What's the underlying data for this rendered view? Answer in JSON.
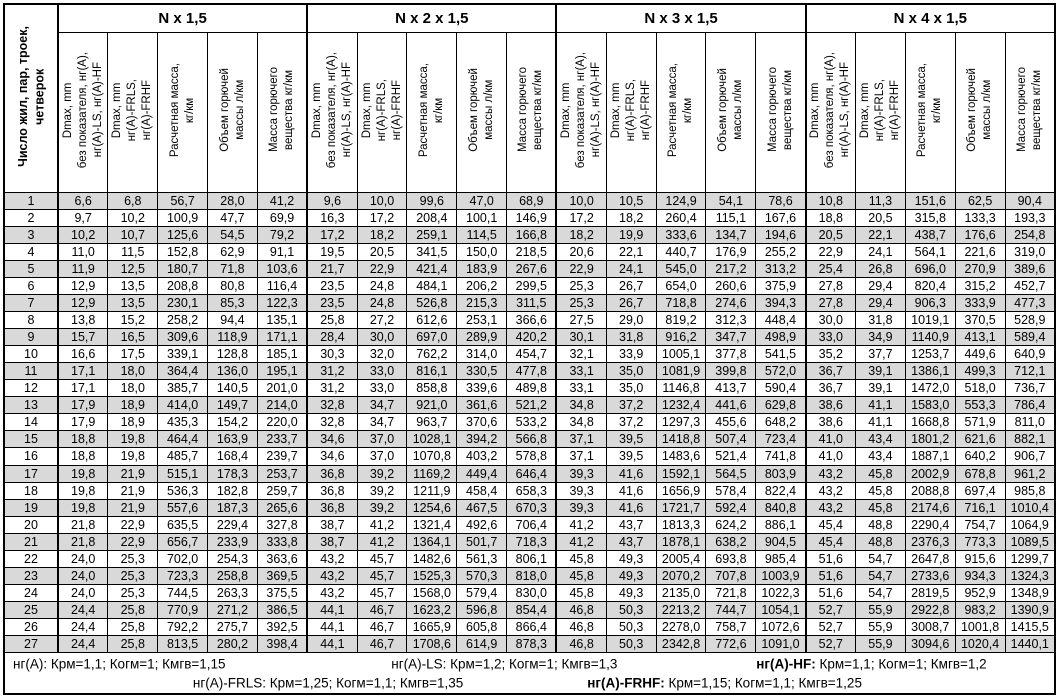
{
  "corner_header": "Число жил, пар, троек,\nчетверок",
  "groups": [
    "N x 1,5",
    "N x 2 x 1,5",
    "N x 3 x 1,5",
    "N x 4 x 1,5"
  ],
  "sub_headers": [
    "Dmax, mm\nбез показателя, нг(А),\nнг(А)-LS, нг(А)-HF",
    "Dmax, mm\nнг(А)-FRLS,\nнг(А)-FRHF",
    "Расчетная масса,\nкг/км",
    "Объем горючей\nмассы л/км",
    "Масса горючего\nвещества кг/км"
  ],
  "rows": [
    [
      "1",
      "6,6",
      "6,8",
      "56,7",
      "28,0",
      "41,2",
      "9,6",
      "10,0",
      "99,6",
      "47,0",
      "68,9",
      "10,0",
      "10,5",
      "124,9",
      "54,1",
      "78,6",
      "10,8",
      "11,3",
      "151,6",
      "62,5",
      "90,4"
    ],
    [
      "2",
      "9,7",
      "10,2",
      "100,9",
      "47,7",
      "69,9",
      "16,3",
      "17,2",
      "208,4",
      "100,1",
      "146,9",
      "17,2",
      "18,2",
      "260,4",
      "115,1",
      "167,6",
      "18,8",
      "20,5",
      "315,8",
      "133,3",
      "193,3"
    ],
    [
      "3",
      "10,2",
      "10,7",
      "125,6",
      "54,5",
      "79,2",
      "17,2",
      "18,2",
      "259,1",
      "114,5",
      "166,8",
      "18,2",
      "19,9",
      "333,6",
      "134,7",
      "194,6",
      "20,5",
      "22,1",
      "438,7",
      "176,6",
      "254,8"
    ],
    [
      "4",
      "11,0",
      "11,5",
      "152,8",
      "62,9",
      "91,1",
      "19,5",
      "20,5",
      "341,5",
      "150,0",
      "218,5",
      "20,6",
      "22,1",
      "440,7",
      "176,9",
      "255,2",
      "22,9",
      "24,1",
      "564,1",
      "221,6",
      "319,0"
    ],
    [
      "5",
      "11,9",
      "12,5",
      "180,7",
      "71,8",
      "103,6",
      "21,7",
      "22,9",
      "421,4",
      "183,9",
      "267,6",
      "22,9",
      "24,1",
      "545,0",
      "217,2",
      "313,2",
      "25,4",
      "26,8",
      "696,0",
      "270,9",
      "389,6"
    ],
    [
      "6",
      "12,9",
      "13,5",
      "208,8",
      "80,8",
      "116,4",
      "23,5",
      "24,8",
      "484,1",
      "206,2",
      "299,5",
      "25,3",
      "26,7",
      "654,0",
      "260,6",
      "375,9",
      "27,8",
      "29,4",
      "820,4",
      "315,2",
      "452,7"
    ],
    [
      "7",
      "12,9",
      "13,5",
      "230,1",
      "85,3",
      "122,3",
      "23,5",
      "24,8",
      "526,8",
      "215,3",
      "311,5",
      "25,3",
      "26,7",
      "718,8",
      "274,6",
      "394,3",
      "27,8",
      "29,4",
      "906,3",
      "333,9",
      "477,3"
    ],
    [
      "8",
      "13,8",
      "15,2",
      "258,2",
      "94,4",
      "135,1",
      "25,8",
      "27,2",
      "612,6",
      "253,1",
      "366,6",
      "27,5",
      "29,0",
      "819,2",
      "312,3",
      "448,4",
      "30,0",
      "31,8",
      "1019,1",
      "370,5",
      "528,9"
    ],
    [
      "9",
      "15,7",
      "16,5",
      "309,6",
      "118,9",
      "171,1",
      "28,4",
      "30,0",
      "697,0",
      "289,9",
      "420,2",
      "30,1",
      "31,8",
      "916,2",
      "347,7",
      "498,9",
      "33,0",
      "34,9",
      "1140,9",
      "413,1",
      "589,4"
    ],
    [
      "10",
      "16,6",
      "17,5",
      "339,1",
      "128,8",
      "185,1",
      "30,3",
      "32,0",
      "762,2",
      "314,0",
      "454,7",
      "32,1",
      "33,9",
      "1005,1",
      "377,8",
      "541,5",
      "35,2",
      "37,7",
      "1253,7",
      "449,6",
      "640,9"
    ],
    [
      "11",
      "17,1",
      "18,0",
      "364,4",
      "136,0",
      "195,1",
      "31,2",
      "33,0",
      "816,1",
      "330,5",
      "477,8",
      "33,1",
      "35,0",
      "1081,9",
      "399,8",
      "572,0",
      "36,7",
      "39,1",
      "1386,1",
      "499,3",
      "712,1"
    ],
    [
      "12",
      "17,1",
      "18,0",
      "385,7",
      "140,5",
      "201,0",
      "31,2",
      "33,0",
      "858,8",
      "339,6",
      "489,8",
      "33,1",
      "35,0",
      "1146,8",
      "413,7",
      "590,4",
      "36,7",
      "39,1",
      "1472,0",
      "518,0",
      "736,7"
    ],
    [
      "13",
      "17,9",
      "18,9",
      "414,0",
      "149,7",
      "214,0",
      "32,8",
      "34,7",
      "921,0",
      "361,6",
      "521,2",
      "34,8",
      "37,2",
      "1232,4",
      "441,6",
      "629,8",
      "38,6",
      "41,1",
      "1583,0",
      "553,3",
      "786,4"
    ],
    [
      "14",
      "17,9",
      "18,9",
      "435,3",
      "154,2",
      "220,0",
      "32,8",
      "34,7",
      "963,7",
      "370,6",
      "533,2",
      "34,8",
      "37,2",
      "1297,3",
      "455,6",
      "648,2",
      "38,6",
      "41,1",
      "1668,8",
      "571,9",
      "811,0"
    ],
    [
      "15",
      "18,8",
      "19,8",
      "464,4",
      "163,9",
      "233,7",
      "34,6",
      "37,0",
      "1028,1",
      "394,2",
      "566,8",
      "37,1",
      "39,5",
      "1418,8",
      "507,4",
      "723,4",
      "41,0",
      "43,4",
      "1801,2",
      "621,6",
      "882,1"
    ],
    [
      "16",
      "18,8",
      "19,8",
      "485,7",
      "168,4",
      "239,7",
      "34,6",
      "37,0",
      "1070,8",
      "403,2",
      "578,8",
      "37,1",
      "39,5",
      "1483,6",
      "521,4",
      "741,8",
      "41,0",
      "43,4",
      "1887,1",
      "640,2",
      "906,7"
    ],
    [
      "17",
      "19,8",
      "21,9",
      "515,1",
      "178,3",
      "253,7",
      "36,8",
      "39,2",
      "1169,2",
      "449,4",
      "646,4",
      "39,3",
      "41,6",
      "1592,1",
      "564,5",
      "803,9",
      "43,2",
      "45,8",
      "2002,9",
      "678,8",
      "961,2"
    ],
    [
      "18",
      "19,8",
      "21,9",
      "536,3",
      "182,8",
      "259,7",
      "36,8",
      "39,2",
      "1211,9",
      "458,4",
      "658,3",
      "39,3",
      "41,6",
      "1656,9",
      "578,4",
      "822,4",
      "43,2",
      "45,8",
      "2088,8",
      "697,4",
      "985,8"
    ],
    [
      "19",
      "19,8",
      "21,9",
      "557,6",
      "187,3",
      "265,6",
      "36,8",
      "39,2",
      "1254,6",
      "467,5",
      "670,3",
      "39,3",
      "41,6",
      "1721,7",
      "592,4",
      "840,8",
      "43,2",
      "45,8",
      "2174,6",
      "716,1",
      "1010,4"
    ],
    [
      "20",
      "21,8",
      "22,9",
      "635,5",
      "229,4",
      "327,8",
      "38,7",
      "41,2",
      "1321,4",
      "492,6",
      "706,4",
      "41,2",
      "43,7",
      "1813,3",
      "624,2",
      "886,1",
      "45,4",
      "48,8",
      "2290,4",
      "754,7",
      "1064,9"
    ],
    [
      "21",
      "21,8",
      "22,9",
      "656,7",
      "233,9",
      "333,8",
      "38,7",
      "41,2",
      "1364,1",
      "501,7",
      "718,3",
      "41,2",
      "43,7",
      "1878,1",
      "638,2",
      "904,5",
      "45,4",
      "48,8",
      "2376,3",
      "773,3",
      "1089,5"
    ],
    [
      "22",
      "24,0",
      "25,3",
      "702,0",
      "254,3",
      "363,6",
      "43,2",
      "45,7",
      "1482,6",
      "561,3",
      "806,1",
      "45,8",
      "49,3",
      "2005,4",
      "693,8",
      "985,4",
      "51,6",
      "54,7",
      "2647,8",
      "915,6",
      "1299,7"
    ],
    [
      "23",
      "24,0",
      "25,3",
      "723,3",
      "258,8",
      "369,5",
      "43,2",
      "45,7",
      "1525,3",
      "570,3",
      "818,0",
      "45,8",
      "49,3",
      "2070,2",
      "707,8",
      "1003,9",
      "51,6",
      "54,7",
      "2733,6",
      "934,3",
      "1324,3"
    ],
    [
      "24",
      "24,0",
      "25,3",
      "744,5",
      "263,3",
      "375,5",
      "43,2",
      "45,7",
      "1568,0",
      "579,4",
      "830,0",
      "45,8",
      "49,3",
      "2135,0",
      "721,8",
      "1022,3",
      "51,6",
      "54,7",
      "2819,5",
      "952,9",
      "1348,9"
    ],
    [
      "25",
      "24,4",
      "25,8",
      "770,9",
      "271,2",
      "386,5",
      "44,1",
      "46,7",
      "1623,2",
      "596,8",
      "854,4",
      "46,8",
      "50,3",
      "2213,2",
      "744,7",
      "1054,1",
      "52,7",
      "55,9",
      "2922,8",
      "983,2",
      "1390,9"
    ],
    [
      "26",
      "24,4",
      "25,8",
      "792,2",
      "275,7",
      "392,5",
      "44,1",
      "46,7",
      "1665,9",
      "605,8",
      "866,4",
      "46,8",
      "50,3",
      "2278,0",
      "758,7",
      "1072,6",
      "52,7",
      "55,9",
      "3008,7",
      "1001,8",
      "1415,5"
    ],
    [
      "27",
      "24,4",
      "25,8",
      "813,5",
      "280,2",
      "398,4",
      "44,1",
      "46,7",
      "1708,6",
      "614,9",
      "878,3",
      "46,8",
      "50,3",
      "2342,8",
      "772,6",
      "1091,0",
      "52,7",
      "55,9",
      "3094,6",
      "1020,4",
      "1440,1"
    ]
  ],
  "footnotes": {
    "line1": [
      {
        "label": "нг(А):",
        "rest": " Крм=1,1;  Когм=1;  Кмгв=1,15",
        "bold": false
      },
      {
        "label": "нг(А)-LS:",
        "rest": " Крм=1,2;  Когм=1;  Кмгв=1,3",
        "bold": false
      },
      {
        "label": "нг(А)-HF:",
        "rest": " Крм=1,1;  Когм=1;  Кмгв=1,2",
        "bold": true
      }
    ],
    "line2": [
      {
        "label": "нг(А)-FRLS:",
        "rest": " Крм=1,25;  Когм=1,1;  Кмгв=1,35",
        "bold": false
      },
      {
        "label": "нг(А)-FRHF:",
        "rest": " Крм=1,15;  Когм=1,1;  Кмгв=1,25",
        "bold": true
      }
    ]
  },
  "colors": {
    "stripe": "#d9d9d9",
    "border": "#000000",
    "background": "#ffffff"
  }
}
